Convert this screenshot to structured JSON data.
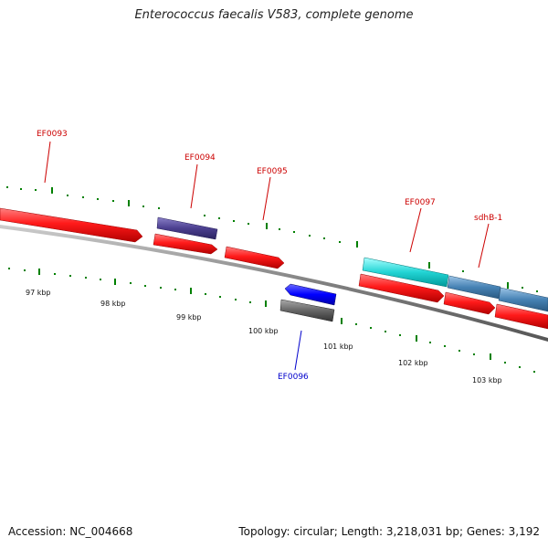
{
  "title": "Enterococcus faecalis V583, complete genome",
  "footer": {
    "accession": "Accession: NC_004668",
    "summary": "Topology: circular; Length: 3,218,031 bp; Genes: 3,192"
  },
  "genes": {
    "EF0093": "EF0093",
    "EF0094": "EF0094",
    "EF0095": "EF0095",
    "EF0096": "EF0096",
    "EF0097": "EF0097",
    "sdhB1": "sdhB-1"
  },
  "ticks": {
    "t97": "97 kbp",
    "t98": "98 kbp",
    "t99": "99 kbp",
    "t100": "100 kbp",
    "t101": "101 kbp",
    "t102": "102 kbp",
    "t103": "103 kbp"
  },
  "colors": {
    "cds": "#ff0000",
    "gene_purple": "#4b3f8f",
    "gene_blue": "#0000ff",
    "gene_gray": "#555555",
    "gene_cyan": "#00cccc",
    "gene_steel": "#4682b4",
    "label_red": "#cc0000",
    "label_blue": "#0000cc",
    "tick_green": "#008000",
    "backbone": "#777777"
  }
}
